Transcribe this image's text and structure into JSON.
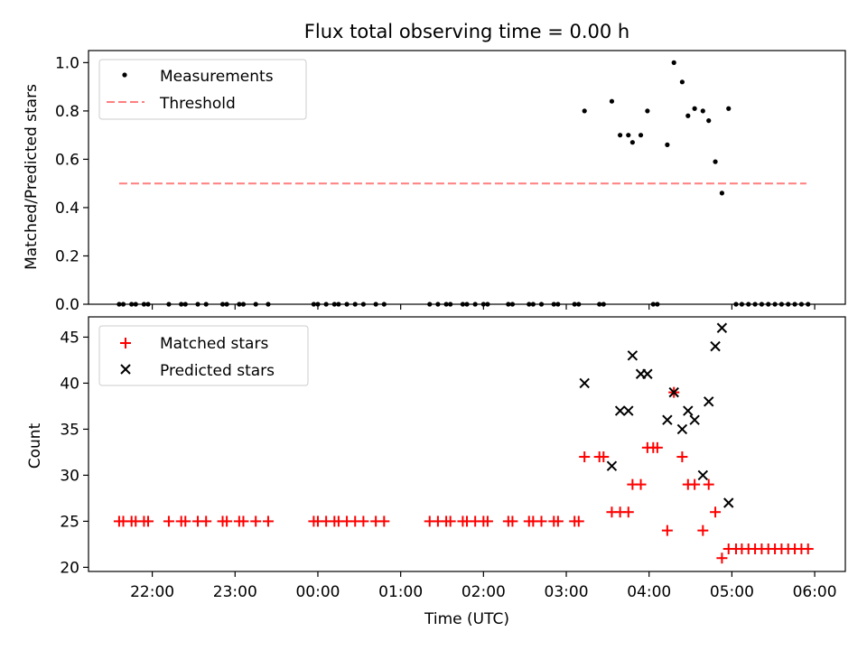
{
  "title": "Flux total observing time = 0.00 h",
  "xlabel": "Time (UTC)",
  "x_ticks": [
    {
      "value": 22,
      "label": "22:00"
    },
    {
      "value": 23,
      "label": "23:00"
    },
    {
      "value": 24,
      "label": "00:00"
    },
    {
      "value": 25,
      "label": "01:00"
    },
    {
      "value": 26,
      "label": "02:00"
    },
    {
      "value": 27,
      "label": "03:00"
    },
    {
      "value": 28,
      "label": "04:00"
    },
    {
      "value": 29,
      "label": "05:00"
    },
    {
      "value": 30,
      "label": "06:00"
    }
  ],
  "colors": {
    "measurements": "#000000",
    "threshold": "#ff7f7f",
    "matched": "#ff0000",
    "predicted": "#000000"
  },
  "chart_data": [
    {
      "type": "scatter",
      "ylabel": "Matched/Predicted stars",
      "xlim": [
        21.23,
        30.37
      ],
      "ylim": [
        0.0,
        1.05
      ],
      "y_ticks": [
        0.0,
        0.2,
        0.4,
        0.6,
        0.8,
        1.0
      ],
      "y_tick_labels": [
        "0.0",
        "0.2",
        "0.4",
        "0.6",
        "0.8",
        "1.0"
      ],
      "legend": {
        "position": "upper-left",
        "entries": [
          "Measurements",
          "Threshold"
        ]
      },
      "threshold": {
        "name": "Threshold",
        "y": 0.5,
        "x": [
          21.6,
          29.9
        ]
      },
      "series": [
        {
          "name": "Measurements",
          "points": [
            [
              21.6,
              0
            ],
            [
              21.65,
              0
            ],
            [
              21.75,
              0
            ],
            [
              21.8,
              0
            ],
            [
              21.9,
              0
            ],
            [
              21.95,
              0
            ],
            [
              22.2,
              0
            ],
            [
              22.35,
              0
            ],
            [
              22.4,
              0
            ],
            [
              22.55,
              0
            ],
            [
              22.65,
              0
            ],
            [
              22.85,
              0
            ],
            [
              22.9,
              0
            ],
            [
              23.05,
              0
            ],
            [
              23.1,
              0
            ],
            [
              23.25,
              0
            ],
            [
              23.4,
              0
            ],
            [
              23.95,
              0
            ],
            [
              24.0,
              0
            ],
            [
              24.1,
              0
            ],
            [
              24.2,
              0
            ],
            [
              24.25,
              0
            ],
            [
              24.35,
              0
            ],
            [
              24.45,
              0
            ],
            [
              24.55,
              0
            ],
            [
              24.7,
              0
            ],
            [
              24.8,
              0
            ],
            [
              25.35,
              0
            ],
            [
              25.45,
              0
            ],
            [
              25.55,
              0
            ],
            [
              25.6,
              0
            ],
            [
              25.75,
              0
            ],
            [
              25.8,
              0
            ],
            [
              25.9,
              0
            ],
            [
              26.0,
              0
            ],
            [
              26.05,
              0
            ],
            [
              26.3,
              0
            ],
            [
              26.35,
              0
            ],
            [
              26.55,
              0
            ],
            [
              26.6,
              0
            ],
            [
              26.7,
              0
            ],
            [
              26.85,
              0
            ],
            [
              26.9,
              0
            ],
            [
              27.1,
              0
            ],
            [
              27.15,
              0
            ],
            [
              27.4,
              0
            ],
            [
              27.45,
              0
            ],
            [
              28.05,
              0
            ],
            [
              28.1,
              0
            ],
            [
              27.22,
              0.8
            ],
            [
              27.55,
              0.84
            ],
            [
              27.65,
              0.7
            ],
            [
              27.75,
              0.7
            ],
            [
              27.8,
              0.67
            ],
            [
              27.9,
              0.7
            ],
            [
              27.98,
              0.8
            ],
            [
              28.22,
              0.66
            ],
            [
              28.3,
              1.0
            ],
            [
              28.4,
              0.92
            ],
            [
              28.47,
              0.78
            ],
            [
              28.55,
              0.81
            ],
            [
              28.65,
              0.8
            ],
            [
              28.72,
              0.76
            ],
            [
              28.8,
              0.59
            ],
            [
              28.88,
              0.46
            ],
            [
              28.96,
              0.81
            ],
            [
              29.05,
              0
            ],
            [
              29.12,
              0
            ],
            [
              29.2,
              0
            ],
            [
              29.28,
              0
            ],
            [
              29.36,
              0
            ],
            [
              29.44,
              0
            ],
            [
              29.52,
              0
            ],
            [
              29.6,
              0
            ],
            [
              29.68,
              0
            ],
            [
              29.76,
              0
            ],
            [
              29.84,
              0
            ],
            [
              29.92,
              0
            ]
          ]
        }
      ]
    },
    {
      "type": "scatter",
      "ylabel": "Count",
      "xlim": [
        21.23,
        30.37
      ],
      "ylim": [
        19.55,
        47.2
      ],
      "y_ticks": [
        20,
        25,
        30,
        35,
        40,
        45
      ],
      "y_tick_labels": [
        "20",
        "25",
        "30",
        "35",
        "40",
        "45"
      ],
      "legend": {
        "position": "upper-left",
        "entries": [
          "Matched stars",
          "Predicted stars"
        ]
      },
      "series": [
        {
          "name": "Matched stars",
          "marker": "plus",
          "points": [
            [
              21.6,
              25
            ],
            [
              21.65,
              25
            ],
            [
              21.75,
              25
            ],
            [
              21.8,
              25
            ],
            [
              21.9,
              25
            ],
            [
              21.95,
              25
            ],
            [
              22.2,
              25
            ],
            [
              22.35,
              25
            ],
            [
              22.4,
              25
            ],
            [
              22.55,
              25
            ],
            [
              22.65,
              25
            ],
            [
              22.85,
              25
            ],
            [
              22.9,
              25
            ],
            [
              23.05,
              25
            ],
            [
              23.1,
              25
            ],
            [
              23.25,
              25
            ],
            [
              23.4,
              25
            ],
            [
              23.95,
              25
            ],
            [
              24.0,
              25
            ],
            [
              24.1,
              25
            ],
            [
              24.2,
              25
            ],
            [
              24.25,
              25
            ],
            [
              24.35,
              25
            ],
            [
              24.45,
              25
            ],
            [
              24.55,
              25
            ],
            [
              24.7,
              25
            ],
            [
              24.8,
              25
            ],
            [
              25.35,
              25
            ],
            [
              25.45,
              25
            ],
            [
              25.55,
              25
            ],
            [
              25.6,
              25
            ],
            [
              25.75,
              25
            ],
            [
              25.8,
              25
            ],
            [
              25.9,
              25
            ],
            [
              26.0,
              25
            ],
            [
              26.05,
              25
            ],
            [
              26.3,
              25
            ],
            [
              26.35,
              25
            ],
            [
              26.55,
              25
            ],
            [
              26.6,
              25
            ],
            [
              26.7,
              25
            ],
            [
              26.85,
              25
            ],
            [
              26.9,
              25
            ],
            [
              27.1,
              25
            ],
            [
              27.15,
              25
            ],
            [
              27.22,
              32
            ],
            [
              27.4,
              32
            ],
            [
              27.45,
              32
            ],
            [
              27.55,
              26
            ],
            [
              27.65,
              26
            ],
            [
              27.75,
              26
            ],
            [
              27.8,
              29
            ],
            [
              27.9,
              29
            ],
            [
              27.98,
              33
            ],
            [
              28.05,
              33
            ],
            [
              28.1,
              33
            ],
            [
              28.22,
              24
            ],
            [
              28.3,
              39
            ],
            [
              28.4,
              32
            ],
            [
              28.47,
              29
            ],
            [
              28.55,
              29
            ],
            [
              28.65,
              24
            ],
            [
              28.72,
              29
            ],
            [
              28.8,
              26
            ],
            [
              28.88,
              21
            ],
            [
              28.96,
              22
            ],
            [
              29.05,
              22
            ],
            [
              29.12,
              22
            ],
            [
              29.2,
              22
            ],
            [
              29.28,
              22
            ],
            [
              29.36,
              22
            ],
            [
              29.44,
              22
            ],
            [
              29.52,
              22
            ],
            [
              29.6,
              22
            ],
            [
              29.68,
              22
            ],
            [
              29.76,
              22
            ],
            [
              29.84,
              22
            ],
            [
              29.92,
              22
            ]
          ]
        },
        {
          "name": "Predicted stars",
          "marker": "x",
          "points": [
            [
              27.22,
              40
            ],
            [
              27.55,
              31
            ],
            [
              27.65,
              37
            ],
            [
              27.75,
              37
            ],
            [
              27.8,
              43
            ],
            [
              27.9,
              41
            ],
            [
              27.98,
              41
            ],
            [
              28.22,
              36
            ],
            [
              28.3,
              39
            ],
            [
              28.4,
              35
            ],
            [
              28.47,
              37
            ],
            [
              28.55,
              36
            ],
            [
              28.65,
              30
            ],
            [
              28.72,
              38
            ],
            [
              28.8,
              44
            ],
            [
              28.88,
              46
            ],
            [
              28.96,
              27
            ]
          ]
        }
      ]
    }
  ]
}
